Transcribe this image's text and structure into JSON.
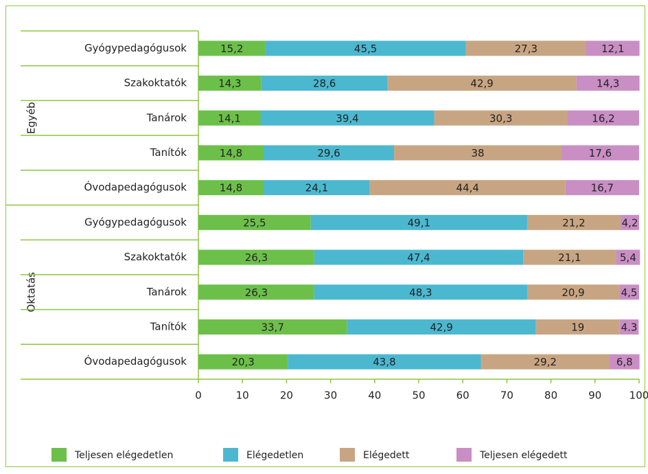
{
  "chart_data": {
    "type": "stacked-barh",
    "groups": [
      {
        "name": "Egyéb",
        "categories": [
          "Gyógypedagógusok",
          "Szakoktatók",
          "Tanárok",
          "Tanítók",
          "Óvodapedagógusok"
        ]
      },
      {
        "name": "Oktatás",
        "categories": [
          "Gyógypedagógusok",
          "Szakoktatók",
          "Tanárok",
          "Tanítók",
          "Óvodapedagógusok"
        ]
      }
    ],
    "series": [
      {
        "name": "Teljesen elégedetlen",
        "color": "#6cc04a",
        "values": [
          15.2,
          14.3,
          14.1,
          14.8,
          14.8,
          25.5,
          26.3,
          26.3,
          33.7,
          20.3
        ],
        "value_labels": [
          "15,2",
          "14,3",
          "14,1",
          "14,8",
          "14,8",
          "25,5",
          "26,3",
          "26,3",
          "33,7",
          "20,3"
        ]
      },
      {
        "name": "Elégedetlen",
        "color": "#4bb8d0",
        "values": [
          45.5,
          28.6,
          39.4,
          29.6,
          24.1,
          49.1,
          47.4,
          48.3,
          42.9,
          43.8
        ],
        "value_labels": [
          "45,5",
          "28,6",
          "39,4",
          "29,6",
          "24,1",
          "49,1",
          "47,4",
          "48,3",
          "42,9",
          "43,8"
        ]
      },
      {
        "name": "Elégedett",
        "color": "#c8a582",
        "values": [
          27.3,
          42.9,
          30.3,
          38,
          44.4,
          21.2,
          21.1,
          20.9,
          19,
          29.2
        ],
        "value_labels": [
          "27,3",
          "42,9",
          "30,3",
          "38",
          "44,4",
          "21,2",
          "21,1",
          "20,9",
          "19",
          "29,2"
        ]
      },
      {
        "name": "Teljesen elégedett",
        "color": "#c98ec4",
        "values": [
          12.1,
          14.3,
          16.2,
          17.6,
          16.7,
          4.2,
          5.4,
          4.5,
          4.3,
          6.8
        ],
        "value_labels": [
          "12,1",
          "14,3",
          "16,2",
          "17,6",
          "16,7",
          "4,2",
          "5,4",
          "4,5",
          "4.3",
          "6,8"
        ]
      }
    ],
    "xlim": [
      0,
      100
    ],
    "xticks": [
      0,
      10,
      20,
      30,
      40,
      50,
      60,
      70,
      80,
      90,
      100
    ],
    "legend": "bottom"
  }
}
